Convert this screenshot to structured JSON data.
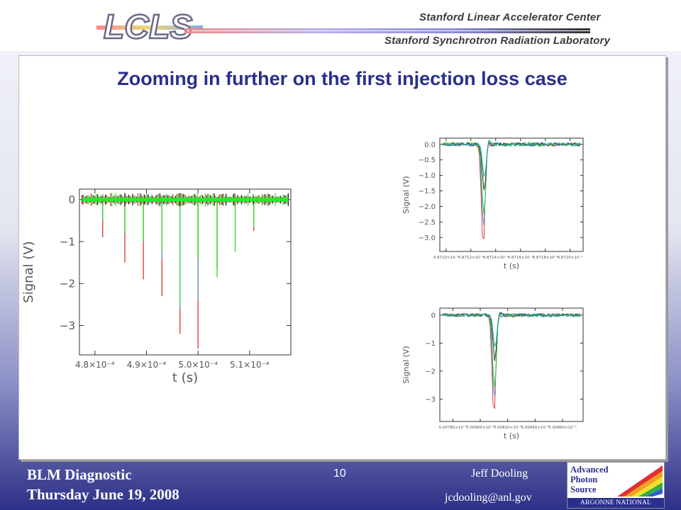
{
  "header": {
    "logo_text": "LCLS",
    "org_line1": "Stanford Linear Accelerator Center",
    "org_line2": "Stanford Synchrotron Radiation Laboratory"
  },
  "slide": {
    "title": "Zooming in further on the first injection loss case"
  },
  "chart_data": [
    {
      "type": "line",
      "id": "main",
      "xlabel": "t (s)",
      "ylabel": "Signal (V)",
      "xlim": [
        0.000477,
        0.000518
      ],
      "ylim": [
        -3.7,
        0.25
      ],
      "xticks": [
        0.00048,
        0.00049,
        0.0005,
        0.00051
      ],
      "xtick_labels": [
        "4.8×10⁻⁴",
        "4.9×10⁻⁴",
        "5.0×10⁻⁴",
        "5.1×10⁻⁴"
      ],
      "yticks": [
        0,
        -1,
        -2,
        -3
      ],
      "ytick_labels": [
        "0",
        "−1",
        "−2",
        "−3"
      ],
      "series": [
        {
          "color": "#e04040",
          "spikes": [
            [
              0.0004815,
              -0.9
            ],
            [
              0.0004858,
              -1.5
            ],
            [
              0.0004894,
              -1.9
            ],
            [
              0.000493,
              -2.3
            ],
            [
              0.0004965,
              -3.2
            ],
            [
              0.0005,
              -3.55
            ],
            [
              0.0005037,
              -1.65
            ],
            [
              0.0005108,
              -0.75
            ]
          ]
        },
        {
          "color": "#6a9ad0",
          "spikes": [
            [
              0.0004965,
              -2.6
            ],
            [
              0.0005,
              -2.4
            ],
            [
              0.000493,
              -1.4
            ]
          ]
        },
        {
          "color": "#33dd33",
          "spikes": [
            [
              0.0004815,
              -0.5
            ],
            [
              0.0004858,
              -0.8
            ],
            [
              0.0004894,
              -1.0
            ],
            [
              0.000493,
              -1.2
            ],
            [
              0.0004965,
              -2.5
            ],
            [
              0.0005,
              -1.4
            ],
            [
              0.0005037,
              -1.85
            ],
            [
              0.0005072,
              -1.25
            ],
            [
              0.0005108,
              -0.65
            ]
          ]
        }
      ]
    },
    {
      "type": "line",
      "id": "top-right",
      "xlabel": "t (s)",
      "ylabel": "Signal (V)",
      "xlim": [
        0.000487095,
        0.0004872105
      ],
      "ylim": [
        -3.45,
        0.2
      ],
      "xticks": [
        0.0004871,
        0.00048712,
        0.00048714,
        0.00048716,
        0.00048718,
        0.0004872
      ],
      "xtick_labels": [
        "4.8710×10⁻⁴",
        "4.8712×10⁻⁴",
        "4.8714×10⁻⁴",
        "4.8716×10⁻⁴",
        "4.8718×10⁻⁴",
        "4.8720×10⁻⁴"
      ],
      "yticks": [
        0,
        -0.5,
        -1,
        -1.5,
        -2,
        -2.5,
        -3
      ],
      "ytick_labels": [
        "0.0",
        "−0.5",
        "−1.0",
        "−1.5",
        "−2.0",
        "−2.5",
        "−3.0"
      ],
      "dip_x": 0.00048713,
      "series": [
        {
          "color": "#e04040",
          "depth": -3.3
        },
        {
          "color": "#5a8ad0",
          "depth": -2.7
        },
        {
          "color": "#33cc33",
          "depth": -2.3
        },
        {
          "color": "#333333",
          "depth": -1.5
        },
        {
          "color": "#20b0b0",
          "depth": -1.1
        }
      ]
    },
    {
      "type": "line",
      "id": "bottom-right",
      "xlabel": "t (s)",
      "ylabel": "Signal (V)",
      "xlim": [
        0.0005007705,
        0.000500875
      ],
      "ylim": [
        -3.8,
        0.25
      ],
      "xticks": [
        0.00050078,
        0.0005008,
        0.00050082,
        0.00050084,
        0.00050086
      ],
      "xtick_labels": [
        "5.00780×10⁻⁴",
        "5.00800×10⁻⁴",
        "5.00820×10⁻⁴",
        "5.00840×10⁻⁴",
        "5.00860×10⁻⁴"
      ],
      "yticks": [
        0,
        -1,
        -2,
        -3
      ],
      "ytick_labels": [
        "0",
        "−1",
        "−2",
        "−3"
      ],
      "dip_x": 0.00050081,
      "series": [
        {
          "color": "#e04040",
          "depth": -3.55
        },
        {
          "color": "#5a8ad0",
          "depth": -3.0
        },
        {
          "color": "#33cc33",
          "depth": -2.6
        },
        {
          "color": "#333333",
          "depth": -1.6
        },
        {
          "color": "#20b0b0",
          "depth": -1.2
        }
      ]
    }
  ],
  "footer": {
    "topic": "BLM Diagnostic",
    "date": "Thursday June 19, 2008",
    "page": "10",
    "author": "Jeff Dooling",
    "email": "jcdooling@anl.gov",
    "aps_logo": {
      "line1": "Advanced",
      "line2": "Photon",
      "line3": "Source",
      "lab": "ARGONNE NATIONAL LABORATORY"
    }
  }
}
